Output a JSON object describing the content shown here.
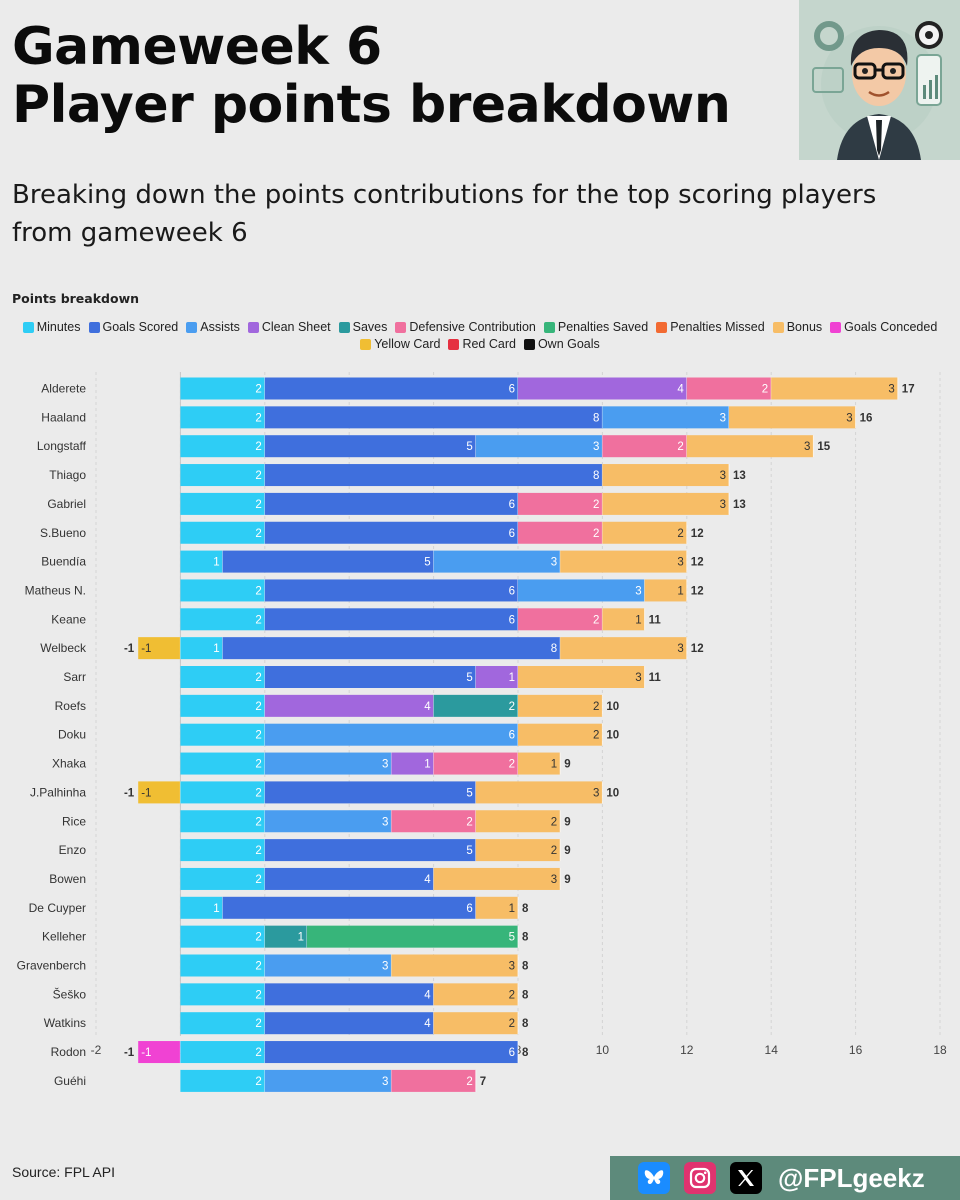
{
  "header": {
    "title_line1": "Gameweek 6",
    "title_line2": "Player points breakdown",
    "subtitle": "Breaking down the points contributions for the top scoring players from gameweek 6"
  },
  "chart_heading": "Points breakdown",
  "footer": {
    "source": "Source: FPL API",
    "handle": "@FPLgeekz"
  },
  "colors": {
    "Minutes": "#2ecdf5",
    "Goals Scored": "#3f6fdd",
    "Assists": "#4a9df0",
    "Clean Sheet": "#a167dd",
    "Saves": "#2b9a9e",
    "Defensive Contribution": "#f0709e",
    "Penalties Saved": "#37b57a",
    "Penalties Missed": "#f26a32",
    "Bonus": "#f7bd66",
    "Goals Conceded": "#f042d3",
    "Yellow Card": "#f0be33",
    "Red Card": "#e53040",
    "Own Goals": "#111111"
  },
  "chart_data": {
    "type": "bar",
    "orientation": "horizontal",
    "stacked": true,
    "legend_position": "top",
    "grid": true,
    "xlim": [
      -2,
      18
    ],
    "x_ticks": [
      -2,
      0,
      2,
      4,
      6,
      8,
      10,
      12,
      14,
      16,
      18
    ],
    "series_order": [
      "Minutes",
      "Goals Scored",
      "Assists",
      "Clean Sheet",
      "Saves",
      "Defensive Contribution",
      "Penalties Saved",
      "Penalties Missed",
      "Bonus",
      "Goals Conceded",
      "Yellow Card",
      "Red Card",
      "Own Goals"
    ],
    "players": [
      {
        "name": "Alderete",
        "total": 17,
        "segments": [
          {
            "s": "Minutes",
            "v": 2
          },
          {
            "s": "Goals Scored",
            "v": 6
          },
          {
            "s": "Clean Sheet",
            "v": 4
          },
          {
            "s": "Defensive Contribution",
            "v": 2
          },
          {
            "s": "Bonus",
            "v": 3
          }
        ]
      },
      {
        "name": "Haaland",
        "total": 16,
        "segments": [
          {
            "s": "Minutes",
            "v": 2
          },
          {
            "s": "Goals Scored",
            "v": 8
          },
          {
            "s": "Assists",
            "v": 3
          },
          {
            "s": "Bonus",
            "v": 3
          }
        ]
      },
      {
        "name": "Longstaff",
        "total": 15,
        "segments": [
          {
            "s": "Minutes",
            "v": 2
          },
          {
            "s": "Goals Scored",
            "v": 5
          },
          {
            "s": "Assists",
            "v": 3
          },
          {
            "s": "Defensive Contribution",
            "v": 2
          },
          {
            "s": "Bonus",
            "v": 3
          }
        ]
      },
      {
        "name": "Thiago",
        "total": 13,
        "segments": [
          {
            "s": "Minutes",
            "v": 2
          },
          {
            "s": "Goals Scored",
            "v": 8
          },
          {
            "s": "Bonus",
            "v": 3
          }
        ]
      },
      {
        "name": "Gabriel",
        "total": 13,
        "segments": [
          {
            "s": "Minutes",
            "v": 2
          },
          {
            "s": "Goals Scored",
            "v": 6
          },
          {
            "s": "Defensive Contribution",
            "v": 2
          },
          {
            "s": "Bonus",
            "v": 3
          }
        ]
      },
      {
        "name": "S.Bueno",
        "total": 12,
        "segments": [
          {
            "s": "Minutes",
            "v": 2
          },
          {
            "s": "Goals Scored",
            "v": 6
          },
          {
            "s": "Defensive Contribution",
            "v": 2
          },
          {
            "s": "Bonus",
            "v": 2
          }
        ]
      },
      {
        "name": "Buendía",
        "total": 12,
        "segments": [
          {
            "s": "Minutes",
            "v": 1
          },
          {
            "s": "Goals Scored",
            "v": 5
          },
          {
            "s": "Assists",
            "v": 3
          },
          {
            "s": "Bonus",
            "v": 3
          }
        ]
      },
      {
        "name": "Matheus N.",
        "total": 12,
        "segments": [
          {
            "s": "Minutes",
            "v": 2
          },
          {
            "s": "Goals Scored",
            "v": 6
          },
          {
            "s": "Assists",
            "v": 3
          },
          {
            "s": "Bonus",
            "v": 1
          }
        ]
      },
      {
        "name": "Keane",
        "total": 11,
        "segments": [
          {
            "s": "Minutes",
            "v": 2
          },
          {
            "s": "Goals Scored",
            "v": 6
          },
          {
            "s": "Defensive Contribution",
            "v": 2
          },
          {
            "s": "Bonus",
            "v": 1
          }
        ]
      },
      {
        "name": "Welbeck",
        "total": 12,
        "negative_label": "-1",
        "segments": [
          {
            "s": "Yellow Card",
            "v": -1
          },
          {
            "s": "Minutes",
            "v": 1
          },
          {
            "s": "Goals Scored",
            "v": 8
          },
          {
            "s": "Bonus",
            "v": 3
          }
        ]
      },
      {
        "name": "Sarr",
        "total": 11,
        "segments": [
          {
            "s": "Minutes",
            "v": 2
          },
          {
            "s": "Goals Scored",
            "v": 5
          },
          {
            "s": "Clean Sheet",
            "v": 1
          },
          {
            "s": "Bonus",
            "v": 3
          }
        ]
      },
      {
        "name": "Roefs",
        "total": 10,
        "segments": [
          {
            "s": "Minutes",
            "v": 2
          },
          {
            "s": "Clean Sheet",
            "v": 4
          },
          {
            "s": "Saves",
            "v": 2
          },
          {
            "s": "Bonus",
            "v": 2
          }
        ]
      },
      {
        "name": "Doku",
        "total": 10,
        "segments": [
          {
            "s": "Minutes",
            "v": 2
          },
          {
            "s": "Assists",
            "v": 6
          },
          {
            "s": "Bonus",
            "v": 2
          }
        ]
      },
      {
        "name": "Xhaka",
        "total": 9,
        "segments": [
          {
            "s": "Minutes",
            "v": 2
          },
          {
            "s": "Assists",
            "v": 3
          },
          {
            "s": "Clean Sheet",
            "v": 1
          },
          {
            "s": "Defensive Contribution",
            "v": 2
          },
          {
            "s": "Bonus",
            "v": 1
          }
        ]
      },
      {
        "name": "J.Palhinha",
        "total": 10,
        "negative_label": "-1",
        "segments": [
          {
            "s": "Yellow Card",
            "v": -1
          },
          {
            "s": "Minutes",
            "v": 2
          },
          {
            "s": "Goals Scored",
            "v": 5
          },
          {
            "s": "Bonus",
            "v": 3
          }
        ]
      },
      {
        "name": "Rice",
        "total": 9,
        "segments": [
          {
            "s": "Minutes",
            "v": 2
          },
          {
            "s": "Assists",
            "v": 3
          },
          {
            "s": "Defensive Contribution",
            "v": 2
          },
          {
            "s": "Bonus",
            "v": 2
          }
        ]
      },
      {
        "name": "Enzo",
        "total": 9,
        "segments": [
          {
            "s": "Minutes",
            "v": 2
          },
          {
            "s": "Goals Scored",
            "v": 5
          },
          {
            "s": "Bonus",
            "v": 2
          }
        ]
      },
      {
        "name": "Bowen",
        "total": 9,
        "segments": [
          {
            "s": "Minutes",
            "v": 2
          },
          {
            "s": "Goals Scored",
            "v": 4
          },
          {
            "s": "Bonus",
            "v": 3
          }
        ]
      },
      {
        "name": "De Cuyper",
        "total": 8,
        "segments": [
          {
            "s": "Minutes",
            "v": 1
          },
          {
            "s": "Goals Scored",
            "v": 6
          },
          {
            "s": "Bonus",
            "v": 1
          }
        ]
      },
      {
        "name": "Kelleher",
        "total": 8,
        "segments": [
          {
            "s": "Minutes",
            "v": 2
          },
          {
            "s": "Saves",
            "v": 1
          },
          {
            "s": "Penalties Saved",
            "v": 5
          }
        ]
      },
      {
        "name": "Gravenberch",
        "total": 8,
        "segments": [
          {
            "s": "Minutes",
            "v": 2
          },
          {
            "s": "Assists",
            "v": 3
          },
          {
            "s": "Bonus",
            "v": 3
          }
        ]
      },
      {
        "name": "Šeško",
        "total": 8,
        "segments": [
          {
            "s": "Minutes",
            "v": 2
          },
          {
            "s": "Goals Scored",
            "v": 4
          },
          {
            "s": "Bonus",
            "v": 2
          }
        ]
      },
      {
        "name": "Watkins",
        "total": 8,
        "segments": [
          {
            "s": "Minutes",
            "v": 2
          },
          {
            "s": "Goals Scored",
            "v": 4
          },
          {
            "s": "Bonus",
            "v": 2
          }
        ]
      },
      {
        "name": "Rodon",
        "total": 8,
        "negative_label": "-1",
        "segments": [
          {
            "s": "Goals Conceded",
            "v": -1
          },
          {
            "s": "Minutes",
            "v": 2
          },
          {
            "s": "Goals Scored",
            "v": 6
          }
        ]
      },
      {
        "name": "Guéhi",
        "total": 7,
        "segments": [
          {
            "s": "Minutes",
            "v": 2
          },
          {
            "s": "Assists",
            "v": 3
          },
          {
            "s": "Defensive Contribution",
            "v": 2
          }
        ]
      }
    ]
  }
}
